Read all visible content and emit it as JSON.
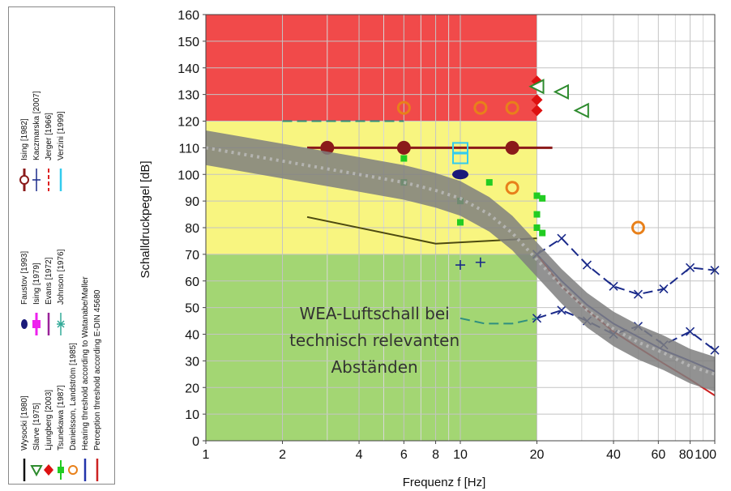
{
  "chart_data": {
    "type": "line",
    "xlabel": "Frequenz f [Hz]",
    "ylabel": "Schalldruckpegel [dB]",
    "x_scale": "log",
    "xlim": [
      1,
      100
    ],
    "ylim": [
      0,
      160
    ],
    "x_ticks": [
      1,
      2,
      4,
      6,
      8,
      10,
      20,
      40,
      60,
      80,
      100
    ],
    "x_tick_labels": [
      "1",
      "2",
      "4",
      "6",
      "8",
      "10",
      "20",
      "40",
      "60",
      "80",
      "100"
    ],
    "y_ticks": [
      0,
      10,
      20,
      30,
      40,
      50,
      60,
      70,
      80,
      90,
      100,
      110,
      120,
      130,
      140,
      150,
      160
    ],
    "grid": true,
    "zones": [
      {
        "name": "red",
        "x": [
          1,
          20
        ],
        "y": [
          120,
          160
        ],
        "color": "#ee2a2a"
      },
      {
        "name": "yellow",
        "x": [
          1,
          20
        ],
        "y": [
          70,
          120
        ],
        "color": "#f7f36a"
      },
      {
        "name": "green",
        "x": [
          1,
          20
        ],
        "y": [
          0,
          70
        ],
        "color": "#93cf5b"
      }
    ],
    "annotation_lines": [
      "WEA-Luftschall bei",
      "technisch relevanten",
      "Abständen"
    ],
    "legend": [
      {
        "label": "Wysocki [1980]",
        "color": "#111111",
        "marker": "line"
      },
      {
        "label": "Slarve [1975]",
        "color": "#2e8b2e",
        "marker": "triangle"
      },
      {
        "label": "Ljungberg [2003]",
        "color": "#dd1111",
        "marker": "diamond"
      },
      {
        "label": "Tsunekawa [1987]",
        "color": "#22cc22",
        "marker": "square"
      },
      {
        "label": "Danielsson, Landström [1985]",
        "color": "#e8801a",
        "marker": "circle"
      },
      {
        "label": "Hearing threshold according to Watanabe/Møller",
        "color": "#2233aa",
        "marker": "line"
      },
      {
        "label": "Perception threshold according E-DIN 45680",
        "color": "#cc2222",
        "marker": "line"
      },
      {
        "label": "Faustov [1993]",
        "color": "#1a1a7a",
        "marker": "ellipse"
      },
      {
        "label": "Ising [1979]",
        "color": "#ee22ee",
        "marker": "bar"
      },
      {
        "label": "Evans [1972]",
        "color": "#992299",
        "marker": "line"
      },
      {
        "label": "Johnson [1976]",
        "color": "#33aa99",
        "marker": "asterisk"
      },
      {
        "label": "Ising [1982]",
        "color": "#8b1a1a",
        "marker": "circle-bar"
      },
      {
        "label": "Kaczmarska [2007]",
        "color": "#1a2a8a",
        "marker": "cross"
      },
      {
        "label": "Jerger [1966]",
        "color": "#dd2222",
        "marker": "dashed"
      },
      {
        "label": "Verzini [1999]",
        "color": "#33ccee",
        "marker": "line"
      }
    ],
    "series": [
      {
        "name": "Hearing threshold according to Watanabe/Møller",
        "color": "#2233aa",
        "x": [
          20,
          25,
          31.5,
          40,
          50,
          63,
          80,
          100
        ],
        "y": [
          70,
          60,
          51,
          44,
          39,
          34,
          30,
          26
        ]
      },
      {
        "name": "Perception threshold according E-DIN 45680",
        "color": "#cc2222",
        "x": [
          20,
          25,
          31.5,
          40,
          50,
          63,
          80,
          100
        ],
        "y": [
          70,
          58,
          49,
          41,
          35,
          29,
          23,
          17
        ]
      },
      {
        "name": "Kaczmarska [2007]",
        "color": "#1a2a8a",
        "x": [
          20,
          25,
          31.5,
          40,
          50,
          63,
          80,
          100
        ],
        "y": [
          70,
          76,
          66,
          58,
          55,
          57,
          65,
          64
        ]
      },
      {
        "name": "Kaczmarska [2007]",
        "color": "#1a2a8a",
        "x": [
          20,
          25,
          31.5,
          40,
          50,
          63,
          80,
          100
        ],
        "y": [
          46,
          49,
          45,
          40,
          43,
          36,
          41,
          34
        ]
      },
      {
        "name": "Wysocki [1980]",
        "color": "#4d4a10",
        "x": [
          2.5,
          8,
          20
        ],
        "y": [
          84,
          74,
          76
        ]
      },
      {
        "name": "Johnson [1976]",
        "color": "#2f8f7f",
        "x": [
          2,
          3,
          4,
          5,
          6
        ],
        "y": [
          120,
          120,
          120,
          120,
          120
        ]
      },
      {
        "name": "Johnson [1976]",
        "color": "#2f8f7f",
        "x": [
          10,
          12.5,
          16,
          20
        ],
        "y": [
          46,
          44,
          44,
          46
        ]
      },
      {
        "name": "Ising [1982]",
        "color": "#8b1a1a",
        "x": [
          2.5,
          23
        ],
        "y": [
          110,
          110
        ]
      }
    ],
    "points": [
      {
        "series": "Ljungberg [2003]",
        "color": "#dd1111",
        "marker": "diamond",
        "x": [
          20,
          20,
          20
        ],
        "y": [
          135,
          128,
          124
        ]
      },
      {
        "series": "Slarve [1975]",
        "color": "#2e8b2e",
        "marker": "triangle",
        "x": [
          20,
          25,
          30
        ],
        "y": [
          133,
          131,
          124
        ]
      },
      {
        "series": "Danielsson, Landström [1985]",
        "color": "#e8801a",
        "marker": "circle",
        "x": [
          6,
          12,
          16,
          16,
          50
        ],
        "y": [
          125,
          125,
          125,
          95,
          80
        ]
      },
      {
        "series": "Ising [1982]",
        "color": "#8b1a1a",
        "marker": "circle",
        "x": [
          3,
          6,
          16
        ],
        "y": [
          110,
          110,
          110
        ]
      },
      {
        "series": "Tsunekawa [1987]",
        "color": "#22cc22",
        "marker": "square",
        "x": [
          6,
          6,
          10,
          10,
          13,
          20,
          20,
          20,
          21,
          21
        ],
        "y": [
          106,
          97,
          90,
          82,
          97,
          92,
          85,
          80,
          91,
          78
        ]
      },
      {
        "series": "Faustov [1993]",
        "color": "#1a1a7a",
        "marker": "ellipse",
        "x": [
          10
        ],
        "y": [
          100
        ]
      },
      {
        "series": "Verzini [1999]",
        "color": "#33ccee",
        "marker": "square-open",
        "x": [
          10,
          10
        ],
        "y": [
          110,
          106
        ]
      },
      {
        "series": "Kaczmarska [2007]",
        "color": "#1a2a8a",
        "marker": "cross",
        "x": [
          10,
          12
        ],
        "y": [
          66,
          67
        ]
      }
    ],
    "band": {
      "name": "WEA-Luftschall",
      "color": "#7f7f7f",
      "x": [
        1,
        2,
        4,
        6,
        8,
        10,
        13,
        16,
        20,
        25,
        31.5,
        40,
        50,
        63,
        80,
        100
      ],
      "y": [
        110,
        105,
        100,
        97,
        94,
        91,
        85,
        78,
        68,
        58,
        49,
        42,
        37,
        33,
        28,
        25
      ],
      "width_db": 13
    }
  }
}
